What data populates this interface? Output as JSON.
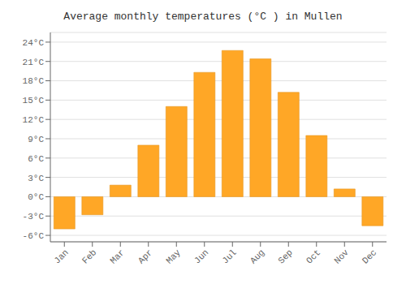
{
  "chart_data": {
    "type": "bar",
    "title": "Average monthly temperatures (°C ) in Mullen",
    "categories": [
      "Jan",
      "Feb",
      "Mar",
      "Apr",
      "May",
      "Jun",
      "Jul",
      "Aug",
      "Sep",
      "Oct",
      "Nov",
      "Dec"
    ],
    "values": [
      -5.0,
      -2.8,
      1.8,
      8.0,
      14.0,
      19.3,
      22.7,
      21.4,
      16.2,
      9.5,
      1.2,
      -4.5
    ],
    "color": "#FFA726",
    "ylim": [
      -7,
      25.5
    ],
    "yticks": [
      {
        "value": -6,
        "label": "-6°C"
      },
      {
        "value": -3,
        "label": "-3°C"
      },
      {
        "value": 0,
        "label": "0°C"
      },
      {
        "value": 3,
        "label": "3°C"
      },
      {
        "value": 6,
        "label": "6°C"
      },
      {
        "value": 9,
        "label": "9°C"
      },
      {
        "value": 12,
        "label": "12°C"
      },
      {
        "value": 15,
        "label": "15°C"
      },
      {
        "value": 18,
        "label": "18°C"
      },
      {
        "value": 21,
        "label": "21°C"
      },
      {
        "value": 24,
        "label": "24°C"
      }
    ],
    "grid": true
  }
}
